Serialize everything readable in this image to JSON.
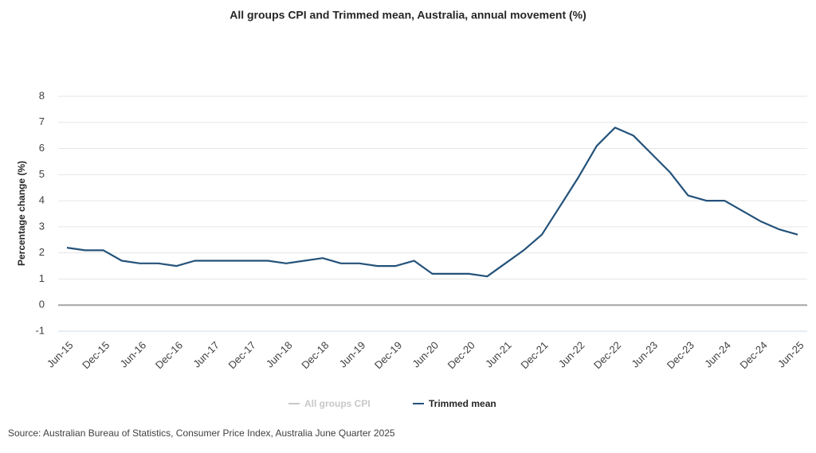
{
  "chart_data": {
    "type": "line",
    "title": "All groups CPI and Trimmed mean, Australia, annual movement (%)",
    "y_label": "Percentage change (%)",
    "source": "Source: Australian Bureau of Statistics, Consumer Price Index, Australia June Quarter 2025",
    "categories": [
      "Jun-15",
      null,
      "Dec-15",
      null,
      "Jun-16",
      null,
      "Dec-16",
      null,
      "Jun-17",
      null,
      "Dec-17",
      null,
      "Jun-18",
      null,
      "Dec-18",
      null,
      "Jun-19",
      null,
      "Dec-19",
      null,
      "Jun-20",
      null,
      "Dec-20",
      null,
      "Jun-21",
      null,
      "Dec-21",
      null,
      "Jun-22",
      null,
      "Dec-22",
      null,
      "Jun-23",
      null,
      "Dec-23",
      null,
      "Jun-24",
      null,
      "Dec-24",
      null,
      "Jun-25"
    ],
    "series": [
      {
        "name": "All groups CPI",
        "color": "#c8c8c8",
        "hidden": true,
        "values": [
          null,
          null,
          null,
          null,
          null,
          null,
          null,
          null,
          null,
          null,
          null,
          null,
          null,
          null,
          null,
          null,
          null,
          null,
          null,
          null,
          null,
          null,
          null,
          null,
          null,
          null,
          null,
          null,
          null,
          null,
          null,
          null,
          null,
          null,
          null,
          null,
          null,
          null,
          null,
          null,
          null
        ]
      },
      {
        "name": "Trimmed mean",
        "color": "#24527a",
        "values": [
          2.2,
          2.1,
          2.1,
          1.7,
          1.6,
          1.6,
          1.5,
          1.7,
          1.7,
          1.7,
          1.7,
          1.7,
          1.6,
          1.7,
          1.8,
          1.6,
          1.6,
          1.5,
          1.5,
          1.7,
          1.2,
          1.2,
          1.2,
          1.1,
          1.6,
          2.1,
          2.7,
          3.8,
          4.9,
          6.1,
          6.8,
          6.5,
          5.8,
          5.1,
          4.2,
          4.0,
          4.0,
          3.6,
          3.2,
          2.9,
          2.7
        ]
      }
    ],
    "ylim": [
      -1,
      8
    ],
    "yticks": [
      -1,
      0,
      1,
      2,
      3,
      4,
      5,
      6,
      7,
      8
    ],
    "grid": true,
    "legend": "bottom"
  }
}
